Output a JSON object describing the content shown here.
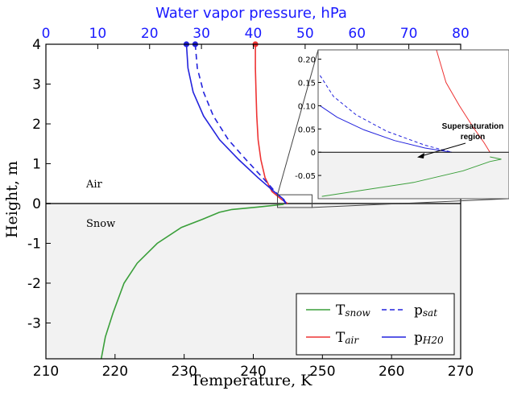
{
  "chart_data": {
    "type": "line",
    "xlabel": "Temperature, K",
    "ylabel": "Height, m",
    "x2label": "Water vapor pressure, hPa",
    "xlim": [
      210,
      270
    ],
    "x2lim": [
      0,
      80
    ],
    "ylim": [
      -3.9,
      4
    ],
    "xticks": [
      "210",
      "220",
      "230",
      "240",
      "250",
      "260",
      "270"
    ],
    "x2ticks": [
      "0",
      "10",
      "20",
      "30",
      "40",
      "50",
      "60",
      "70",
      "80"
    ],
    "yticks": [
      "4",
      "3",
      "2",
      "1",
      "0",
      "-1",
      "-2",
      "-3"
    ],
    "regions": {
      "air": "Air",
      "snow": "Snow"
    },
    "colors": {
      "snow": "#3a9f3a",
      "air": "#ee3333",
      "vapor": "#2222dd",
      "snowfill": "#f2f2f2"
    },
    "series": [
      {
        "name": "T_snow",
        "axis": "x",
        "style": "solid",
        "color": "#3a9f3a",
        "x": [
          218.0,
          218.6,
          219.7,
          221.3,
          223.2,
          226.1,
          229.6,
          232.6,
          235.1,
          236.9,
          240.6,
          244.4
        ],
        "y": [
          -3.9,
          -3.35,
          -2.75,
          -2.0,
          -1.5,
          -1.0,
          -0.6,
          -0.4,
          -0.22,
          -0.15,
          -0.09,
          -0.02
        ]
      },
      {
        "name": "T_air",
        "axis": "x",
        "style": "solid",
        "color": "#ee3333",
        "x": [
          240.3,
          240.3,
          240.4,
          240.5,
          240.7,
          241.1,
          241.7,
          242.7,
          244.1,
          245.0
        ],
        "y": [
          4.0,
          3.4,
          2.8,
          2.2,
          1.6,
          1.1,
          0.65,
          0.3,
          0.1,
          0.0
        ]
      },
      {
        "name": "p_sat",
        "axis": "x2",
        "style": "dashed",
        "color": "#2222dd",
        "x": [
          28.8,
          29.2,
          30.4,
          32.3,
          35.2,
          38.6,
          41.8,
          44.2,
          45.7,
          46.3
        ],
        "y": [
          4.0,
          3.4,
          2.8,
          2.2,
          1.6,
          1.1,
          0.65,
          0.3,
          0.1,
          0.0
        ]
      },
      {
        "name": "p_H20",
        "axis": "x2",
        "style": "solid",
        "color": "#2222dd",
        "x": [
          27.1,
          27.4,
          28.4,
          30.4,
          33.5,
          37.2,
          40.9,
          44.0,
          45.9,
          46.3
        ],
        "y": [
          4.0,
          3.4,
          2.8,
          2.2,
          1.6,
          1.1,
          0.65,
          0.3,
          0.1,
          0.0
        ]
      }
    ],
    "markers": [
      {
        "series": "p_H20",
        "x": 27.1,
        "y": 4.0
      },
      {
        "series": "p_sat",
        "x": 28.8,
        "y": 4.0
      },
      {
        "series": "T_air",
        "x": 240.3,
        "y": 4.0
      }
    ],
    "legend": {
      "placement": "lower-right",
      "items": [
        {
          "key": "T_snow",
          "base": "T",
          "sub": "snow",
          "color": "#3a9f3a",
          "style": "solid"
        },
        {
          "key": "p_sat",
          "base": "p",
          "sub": "sat",
          "color": "#2222dd",
          "style": "dashed"
        },
        {
          "key": "T_air",
          "base": "T",
          "sub": "air",
          "color": "#ee3333",
          "style": "solid"
        },
        {
          "key": "p_H20",
          "base": "p",
          "sub": "H20",
          "color": "#2222dd",
          "style": "solid"
        }
      ]
    },
    "inset": {
      "placement": "upper-right",
      "annotation_line1": "Supersaturation",
      "annotation_line2": "region",
      "xlim": [
        243.5,
        248.5
      ],
      "ylim": [
        -0.1,
        0.22
      ],
      "yticks": [
        "0.20",
        "0.15",
        "0.10",
        "0.05",
        "0",
        "-0.05"
      ],
      "series": [
        {
          "name": "T_snow",
          "color": "#3a9f3a",
          "style": "solid",
          "x": [
            243.6,
            246.0,
            247.3,
            248.0,
            248.3,
            248.0
          ],
          "y": [
            -0.095,
            -0.065,
            -0.04,
            -0.02,
            -0.015,
            -0.01
          ]
        },
        {
          "name": "T_air",
          "color": "#ee3333",
          "style": "solid",
          "x": [
            246.6,
            246.85,
            247.2,
            247.55,
            247.85,
            248.0
          ],
          "y": [
            0.22,
            0.15,
            0.1,
            0.055,
            0.02,
            0.0
          ]
        },
        {
          "name": "p_sat",
          "color": "#2222dd",
          "style": "dashed",
          "x": [
            243.55,
            243.9,
            244.5,
            245.3,
            246.3,
            247.0
          ],
          "y": [
            0.165,
            0.12,
            0.08,
            0.045,
            0.015,
            0.0
          ]
        },
        {
          "name": "p_H20",
          "color": "#2222dd",
          "style": "solid",
          "x": [
            243.55,
            244.0,
            244.7,
            245.5,
            246.3,
            247.0
          ],
          "y": [
            0.1,
            0.075,
            0.048,
            0.025,
            0.009,
            0.0
          ]
        }
      ]
    }
  }
}
